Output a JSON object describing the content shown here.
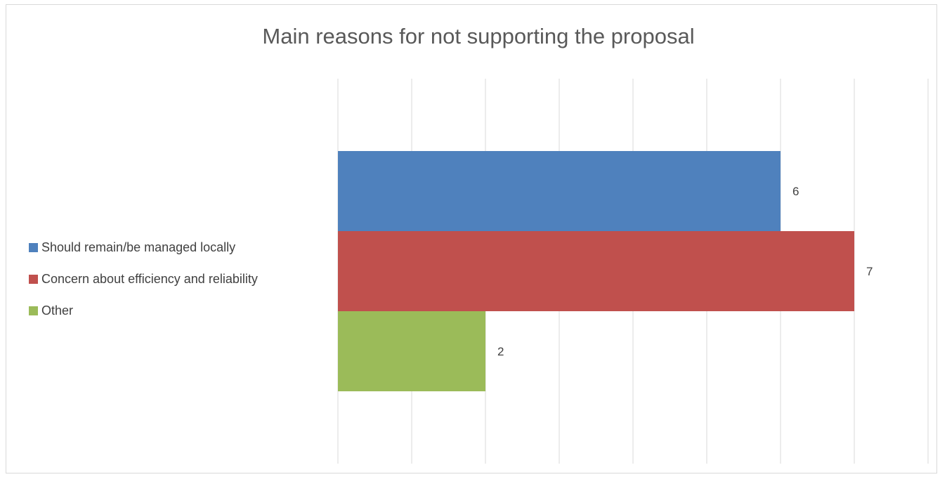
{
  "chart_data": {
    "type": "bar",
    "orientation": "horizontal",
    "title": "Main reasons for not supporting the proposal",
    "xlabel": "",
    "ylabel": "",
    "xlim": [
      0,
      8
    ],
    "grid": true,
    "legend_position": "left",
    "data_labels": true,
    "series": [
      {
        "name": "Should remain/be managed locally",
        "values": [
          6
        ],
        "color": "#4F81BD"
      },
      {
        "name": "Concern about efficiency and reliability",
        "values": [
          7
        ],
        "color": "#C0504D"
      },
      {
        "name": "Other",
        "values": [
          2
        ],
        "color": "#9BBB59"
      }
    ]
  }
}
